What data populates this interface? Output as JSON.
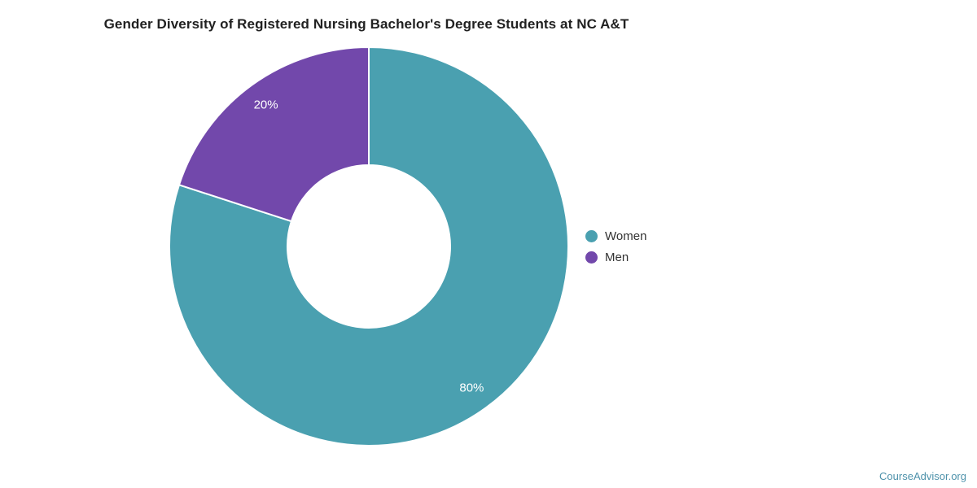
{
  "page": {
    "watermark_label": "CourseAdvisor.org",
    "background_color": "#ffffff"
  },
  "chart_data": {
    "type": "pie",
    "subtype": "donut",
    "title": "Gender Diversity of Registered Nursing Bachelor's Degree Students at NC A&T",
    "categories": [
      "Women",
      "Men"
    ],
    "values": [
      80,
      20
    ],
    "slice_labels": [
      "80%",
      "20%"
    ],
    "slice_colors": [
      "#4AA0B0",
      "#7248AB"
    ],
    "slice_label_color": "#ffffff",
    "slice_separator_color": "#ffffff",
    "start_angle": "top",
    "direction": "clockwise",
    "legend_position": "right"
  },
  "legend": {
    "items": [
      {
        "label": "Women",
        "color": "#4AA0B0"
      },
      {
        "label": "Men",
        "color": "#7248AB"
      }
    ]
  },
  "colors": {
    "title_text": "#212121",
    "legend_text": "#333333",
    "watermark_text": "#4E92AB"
  }
}
